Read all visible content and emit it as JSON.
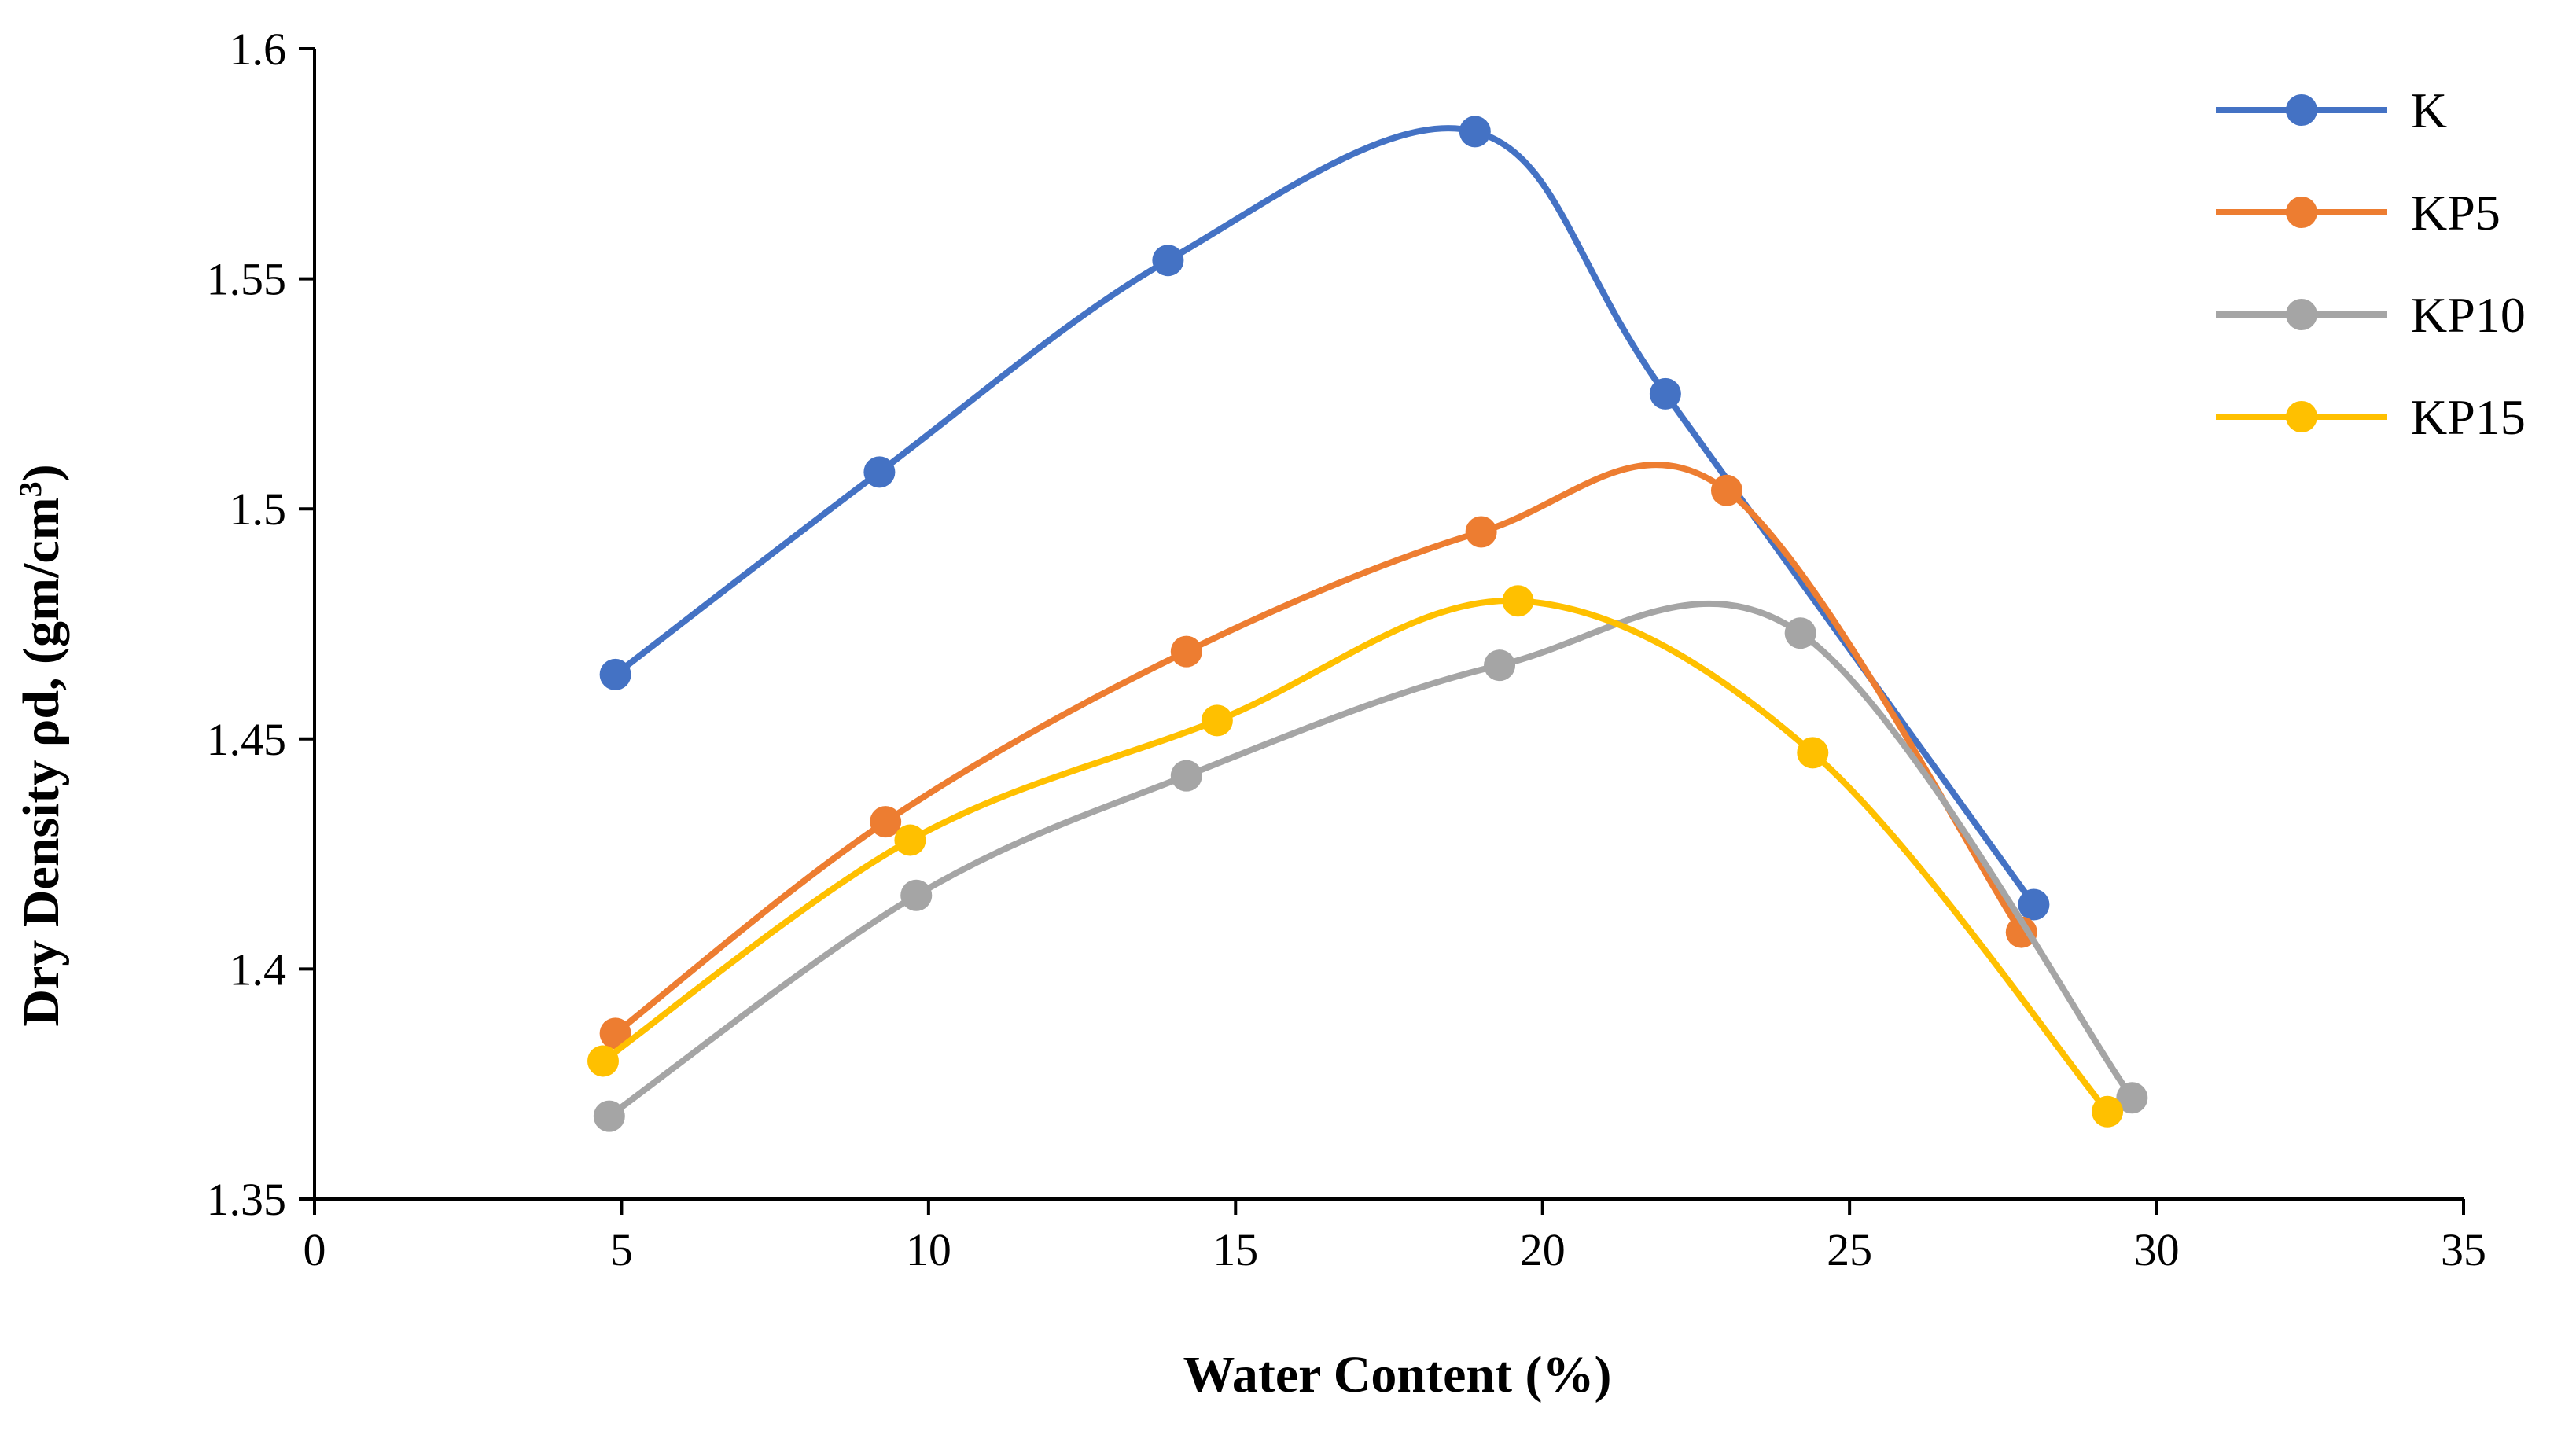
{
  "chart_data": {
    "type": "scatter",
    "title": "",
    "xlabel": "Water Content (%)",
    "ylabel_main": "Dry Density ρd, (gm/cm",
    "ylabel_sup": "3",
    "ylabel_close": ")",
    "xlim": [
      0,
      35
    ],
    "ylim": [
      1.35,
      1.6
    ],
    "x_ticks": [
      0,
      5,
      10,
      15,
      20,
      25,
      30,
      35
    ],
    "y_ticks": [
      1.35,
      1.4,
      1.45,
      1.5,
      1.55,
      1.6
    ],
    "x_tick_labels": [
      "0",
      "5",
      "10",
      "15",
      "20",
      "25",
      "30",
      "35"
    ],
    "y_tick_labels": [
      "1.35",
      "1.4",
      "1.45",
      "1.5",
      "1.55",
      "1.6"
    ],
    "grid": false,
    "smooth_lines": true,
    "legend_position": "right",
    "series": [
      {
        "name": "K",
        "color": "#4472C4",
        "x": [
          4.9,
          9.2,
          13.9,
          18.9,
          22.0,
          28.0
        ],
        "y": [
          1.464,
          1.508,
          1.554,
          1.582,
          1.525,
          1.414
        ]
      },
      {
        "name": "KP5",
        "color": "#ED7D31",
        "x": [
          4.9,
          9.3,
          14.2,
          19.0,
          23.0,
          27.8
        ],
        "y": [
          1.386,
          1.432,
          1.469,
          1.495,
          1.504,
          1.408
        ]
      },
      {
        "name": "KP10",
        "color": "#A5A5A5",
        "x": [
          4.8,
          9.8,
          14.2,
          19.3,
          24.2,
          29.6
        ],
        "y": [
          1.368,
          1.416,
          1.442,
          1.466,
          1.473,
          1.372
        ]
      },
      {
        "name": "KP15",
        "color": "#FFC000",
        "x": [
          4.7,
          9.7,
          14.7,
          19.6,
          24.4,
          29.2
        ],
        "y": [
          1.38,
          1.428,
          1.454,
          1.48,
          1.447,
          1.369
        ]
      }
    ]
  }
}
